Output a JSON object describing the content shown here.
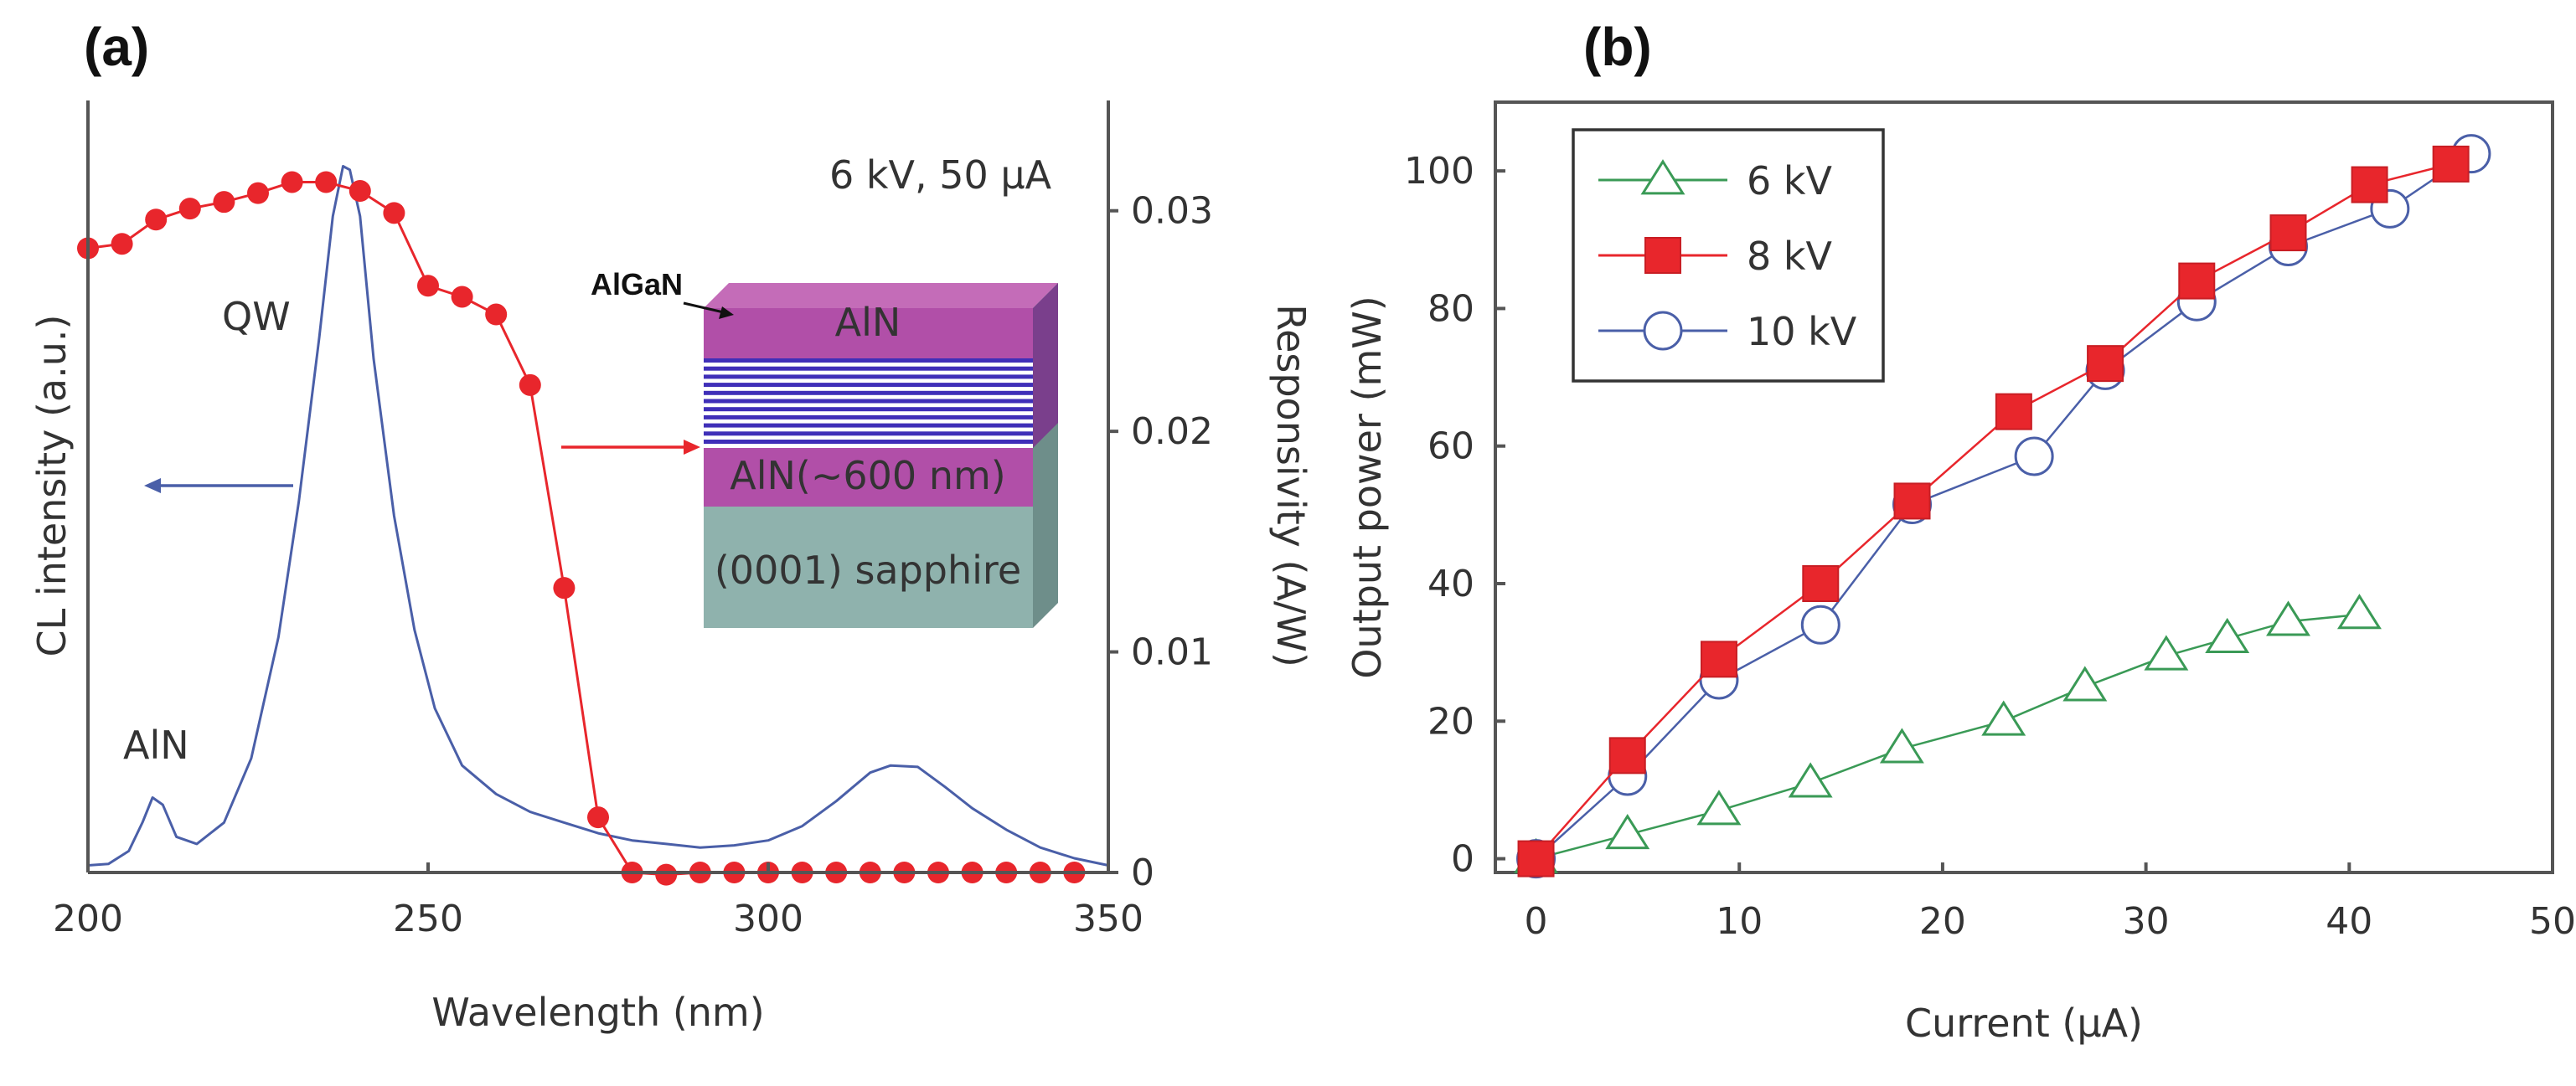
{
  "colors": {
    "blue": "#4a5fa8",
    "red": "#e8262c",
    "green": "#3a9a56",
    "magenta": "#b14fa8",
    "stripe": "#3f2fb8",
    "sapphire": "#8fb2ad",
    "axis": "#555555"
  },
  "chart_data": [
    {
      "panel_label": "(a)",
      "type": "line",
      "xlabel": "Wavelength (nm)",
      "ylabel_left": "CL intensity (a.u.)",
      "ylabel_right": "Responsivity (A/W)",
      "xlim": [
        200,
        350
      ],
      "ylim_right": [
        0,
        0.035
      ],
      "xticks": [
        "200",
        "250",
        "300",
        "350"
      ],
      "yticks_right": [
        "0",
        "0.01",
        "0.02",
        "0.03"
      ],
      "annotations": {
        "condition": "6 kV, 50 µA",
        "qw": "QW",
        "aln_peak": "AlN"
      },
      "inset": {
        "algan": "AlGaN",
        "top_layer": "AlN",
        "buffer_layer": "AlN(~600 nm)",
        "substrate": "(0001) sapphire"
      },
      "series": [
        {
          "axis": "left",
          "style": "line",
          "x": [
            200,
            203,
            206,
            208,
            209.5,
            211,
            213,
            216,
            220,
            224,
            228,
            231,
            234,
            236,
            237.5,
            238.5,
            240,
            242,
            245,
            248,
            251,
            255,
            260,
            265,
            270,
            275,
            280,
            285,
            290,
            295,
            300,
            305,
            310,
            315,
            318,
            322,
            326,
            330,
            335,
            340,
            345,
            350
          ],
          "y": [
            0.01,
            0.012,
            0.03,
            0.07,
            0.105,
            0.095,
            0.05,
            0.04,
            0.07,
            0.16,
            0.33,
            0.52,
            0.75,
            0.92,
            0.99,
            0.985,
            0.92,
            0.72,
            0.5,
            0.34,
            0.23,
            0.15,
            0.11,
            0.085,
            0.07,
            0.055,
            0.045,
            0.04,
            0.035,
            0.038,
            0.045,
            0.065,
            0.1,
            0.14,
            0.15,
            0.148,
            0.12,
            0.09,
            0.06,
            0.035,
            0.02,
            0.01
          ]
        },
        {
          "axis": "right",
          "style": "line+markers",
          "x": [
            200,
            205,
            210,
            215,
            220,
            225,
            230,
            235,
            240,
            245,
            250,
            255,
            260,
            265,
            270,
            275,
            280,
            285,
            290,
            295,
            300,
            305,
            310,
            315,
            320,
            325,
            330,
            335,
            340,
            345
          ],
          "y": [
            0.0283,
            0.0285,
            0.0296,
            0.0301,
            0.0304,
            0.0308,
            0.0313,
            0.0313,
            0.0309,
            0.0299,
            0.0266,
            0.0261,
            0.0253,
            0.0221,
            0.0129,
            0.0025,
            0,
            -0.0001,
            0,
            0,
            0,
            0,
            0,
            0,
            0,
            0,
            0,
            0,
            0,
            0
          ]
        }
      ]
    },
    {
      "panel_label": "(b)",
      "type": "line",
      "xlabel": "Current (µA)",
      "ylabel": "Output power (mW)",
      "xlim": [
        -2,
        50
      ],
      "ylim": [
        -2,
        110
      ],
      "xticks": [
        "0",
        "10",
        "20",
        "30",
        "40",
        "50"
      ],
      "yticks": [
        "0",
        "20",
        "40",
        "60",
        "80",
        "100"
      ],
      "legend_position": "top-left",
      "series": [
        {
          "name": "6 kV",
          "marker": "triangle",
          "x": [
            0,
            4.5,
            9,
            13.5,
            18,
            23,
            27,
            31,
            34,
            37,
            40.5
          ],
          "y": [
            0,
            3.5,
            7,
            11,
            16,
            20,
            25,
            29.5,
            32,
            34.5,
            35.5
          ]
        },
        {
          "name": "8 kV",
          "marker": "square",
          "x": [
            0,
            4.5,
            9,
            14,
            18.5,
            23.5,
            28,
            32.5,
            37,
            41,
            45
          ],
          "y": [
            0,
            15,
            29,
            40,
            52,
            65,
            72,
            84,
            91,
            98,
            101
          ]
        },
        {
          "name": "10 kV",
          "marker": "circle",
          "x": [
            0,
            4.5,
            9,
            14,
            18.5,
            24.5,
            28,
            32.5,
            37,
            42,
            46
          ],
          "y": [
            0,
            12,
            26,
            34,
            51.5,
            58.5,
            71,
            81,
            89,
            94.5,
            102.5
          ]
        }
      ]
    }
  ]
}
